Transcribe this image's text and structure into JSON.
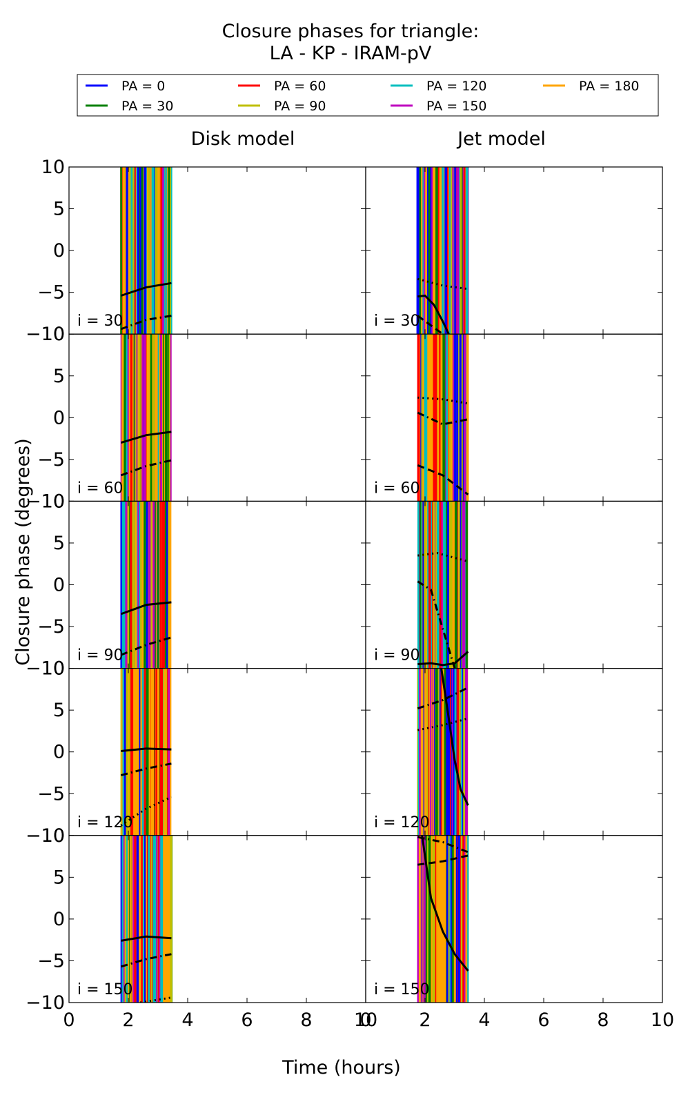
{
  "title_line1": "Closure phases for triangle:",
  "title_line2": "LA - KP - IRAM-pV",
  "legend": [
    {
      "label": "PA = 0",
      "color": "#0000ff"
    },
    {
      "label": "PA = 30",
      "color": "#008000"
    },
    {
      "label": "PA = 60",
      "color": "#ff0000"
    },
    {
      "label": "PA = 90",
      "color": "#bfbf00"
    },
    {
      "label": "PA = 120",
      "color": "#00bfbf"
    },
    {
      "label": "PA = 150",
      "color": "#bf00bf"
    },
    {
      "label": "PA = 180",
      "color": "#ffa500"
    }
  ],
  "columns": [
    "Disk model",
    "Jet model"
  ],
  "ylabel": "Closure phase (degrees)",
  "xlabel": "Time (hours)",
  "chart_data": {
    "type": "line",
    "xlim": [
      0,
      10
    ],
    "ylim": [
      -10,
      10
    ],
    "xticks": [
      0,
      2,
      4,
      6,
      8,
      10
    ],
    "yticks": [
      10,
      5,
      0,
      -5,
      -10
    ],
    "observation_window_hours": [
      1.75,
      3.45
    ],
    "panels": [
      {
        "model": "Disk model",
        "label": "i = 30",
        "series": [
          {
            "style": "solid",
            "x": [
              1.75,
              2.6,
              3.45
            ],
            "y": [
              -5.4,
              -4.4,
              -3.9
            ]
          },
          {
            "style": "dashdot",
            "x": [
              1.75,
              2.6,
              3.45
            ],
            "y": [
              -9.4,
              -8.3,
              -7.8
            ]
          }
        ]
      },
      {
        "model": "Jet model",
        "label": "i = 30",
        "series": [
          {
            "style": "solid",
            "x": [
              1.75,
              2.0,
              2.3,
              2.6,
              2.8
            ],
            "y": [
              -5.5,
              -5.4,
              -6.5,
              -8.5,
              -10
            ]
          },
          {
            "style": "dashed",
            "x": [
              1.75,
              2.1,
              2.6
            ],
            "y": [
              -7.8,
              -8.7,
              -10
            ]
          },
          {
            "style": "dotted",
            "x": [
              1.75,
              2.6,
              3.45
            ],
            "y": [
              -3.4,
              -4.2,
              -4.6
            ]
          }
        ]
      },
      {
        "model": "Disk model",
        "label": "i = 60",
        "series": [
          {
            "style": "solid",
            "x": [
              1.75,
              2.6,
              3.45
            ],
            "y": [
              -3.0,
              -2.1,
              -1.7
            ]
          },
          {
            "style": "dashdot",
            "x": [
              1.75,
              2.6,
              3.45
            ],
            "y": [
              -6.9,
              -5.8,
              -5.1
            ]
          }
        ]
      },
      {
        "model": "Jet model",
        "label": "i = 60",
        "series": [
          {
            "style": "dashed",
            "x": [
              1.75,
              2.6,
              3.45
            ],
            "y": [
              -5.7,
              -6.9,
              -9.2
            ]
          },
          {
            "style": "dotted",
            "x": [
              1.75,
              2.6,
              3.45
            ],
            "y": [
              2.4,
              2.2,
              1.7
            ]
          },
          {
            "style": "dashdot",
            "x": [
              1.75,
              2.6,
              3.45
            ],
            "y": [
              0.6,
              -0.8,
              -0.2
            ]
          }
        ]
      },
      {
        "model": "Disk model",
        "label": "i = 90",
        "series": [
          {
            "style": "solid",
            "x": [
              1.75,
              2.6,
              3.45
            ],
            "y": [
              -3.5,
              -2.4,
              -2.1
            ]
          },
          {
            "style": "dashdot",
            "x": [
              1.75,
              2.6,
              3.45
            ],
            "y": [
              -8.4,
              -7.2,
              -6.3
            ]
          }
        ]
      },
      {
        "model": "Jet model",
        "label": "i = 90",
        "series": [
          {
            "style": "solid",
            "x": [
              1.75,
              2.2,
              2.6,
              3.0,
              3.45
            ],
            "y": [
              -9.5,
              -9.4,
              -9.6,
              -9.4,
              -8.0
            ]
          },
          {
            "style": "dashdot",
            "x": [
              1.75,
              2.2,
              3.0
            ],
            "y": [
              0.4,
              -0.6,
              -10
            ]
          },
          {
            "style": "dotted",
            "x": [
              1.75,
              2.4,
              3.45
            ],
            "y": [
              3.5,
              3.8,
              2.8
            ]
          }
        ]
      },
      {
        "model": "Disk model",
        "label": "i = 120",
        "series": [
          {
            "style": "solid",
            "x": [
              1.75,
              2.6,
              3.45
            ],
            "y": [
              0.1,
              0.4,
              0.3
            ]
          },
          {
            "style": "dashdot",
            "x": [
              1.75,
              2.6,
              3.45
            ],
            "y": [
              -2.8,
              -2.0,
              -1.4
            ]
          },
          {
            "style": "dotted",
            "x": [
              1.75,
              2.6,
              3.45
            ],
            "y": [
              -8.8,
              -6.8,
              -5.4
            ]
          }
        ]
      },
      {
        "model": "Jet model",
        "label": "i = 120",
        "series": [
          {
            "style": "solid",
            "x": [
              2.55,
              2.8,
              3.0,
              3.2,
              3.45
            ],
            "y": [
              10,
              4.0,
              -1.0,
              -4.5,
              -6.4
            ]
          },
          {
            "style": "dashdot",
            "x": [
              1.75,
              2.6,
              3.45
            ],
            "y": [
              5.2,
              6.2,
              7.7
            ]
          },
          {
            "style": "dotted",
            "x": [
              1.75,
              2.6,
              3.45
            ],
            "y": [
              2.6,
              3.2,
              4.0
            ]
          }
        ]
      },
      {
        "model": "Disk model",
        "label": "i = 150",
        "series": [
          {
            "style": "solid",
            "x": [
              1.75,
              2.6,
              3.45
            ],
            "y": [
              -2.6,
              -2.1,
              -2.3
            ]
          },
          {
            "style": "dashdot",
            "x": [
              1.75,
              2.6,
              3.45
            ],
            "y": [
              -5.7,
              -4.8,
              -4.2
            ]
          },
          {
            "style": "dotted",
            "x": [
              2.4,
              3.45
            ],
            "y": [
              -10,
              -9.4
            ]
          }
        ]
      },
      {
        "model": "Jet model",
        "label": "i = 150",
        "series": [
          {
            "style": "solid",
            "x": [
              1.9,
              2.2,
              2.6,
              3.0,
              3.45
            ],
            "y": [
              10,
              2.5,
              -1.5,
              -4.2,
              -6.2
            ]
          },
          {
            "style": "dashed",
            "x": [
              1.75,
              2.6,
              3.45
            ],
            "y": [
              6.5,
              6.9,
              7.6
            ]
          },
          {
            "style": "dashdot",
            "x": [
              1.75,
              2.6,
              3.45
            ],
            "y": [
              9.8,
              9.2,
              8.0
            ]
          }
        ]
      }
    ]
  }
}
